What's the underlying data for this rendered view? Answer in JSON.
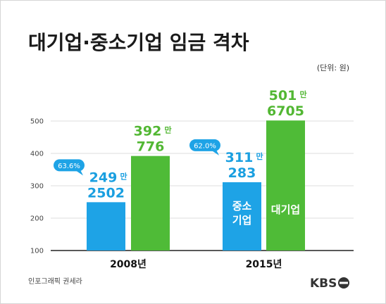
{
  "title": "대기업·중소기업 임금 격차",
  "unit": "(단위: 원)",
  "credit": "인포그래픽 권세라",
  "logo_text": "KBS",
  "colors": {
    "small": "#1ea3e6",
    "large": "#4fbb37",
    "bubble": "#1ea3e6"
  },
  "chart_data": {
    "type": "bar",
    "categories": [
      "2008년",
      "2015년"
    ],
    "ylim": [
      100,
      500
    ],
    "yticks": [
      100,
      200,
      300,
      400,
      500
    ],
    "series": [
      {
        "name": "중소기업",
        "values": [
          249.2502,
          311.0283
        ],
        "labels": [
          [
            "249",
            "만",
            "2502"
          ],
          [
            "311",
            "만",
            "283"
          ]
        ]
      },
      {
        "name": "대기업",
        "values": [
          392.0776,
          501.6705
        ],
        "labels": [
          [
            "392",
            "만",
            "776"
          ],
          [
            "501",
            "만",
            "6705"
          ]
        ]
      }
    ],
    "ratio_labels": [
      "63.6%",
      "62.0%"
    ],
    "in_bar_labels": {
      "small": [
        "중소",
        "기업"
      ],
      "large": "대기업"
    },
    "grid": true
  }
}
